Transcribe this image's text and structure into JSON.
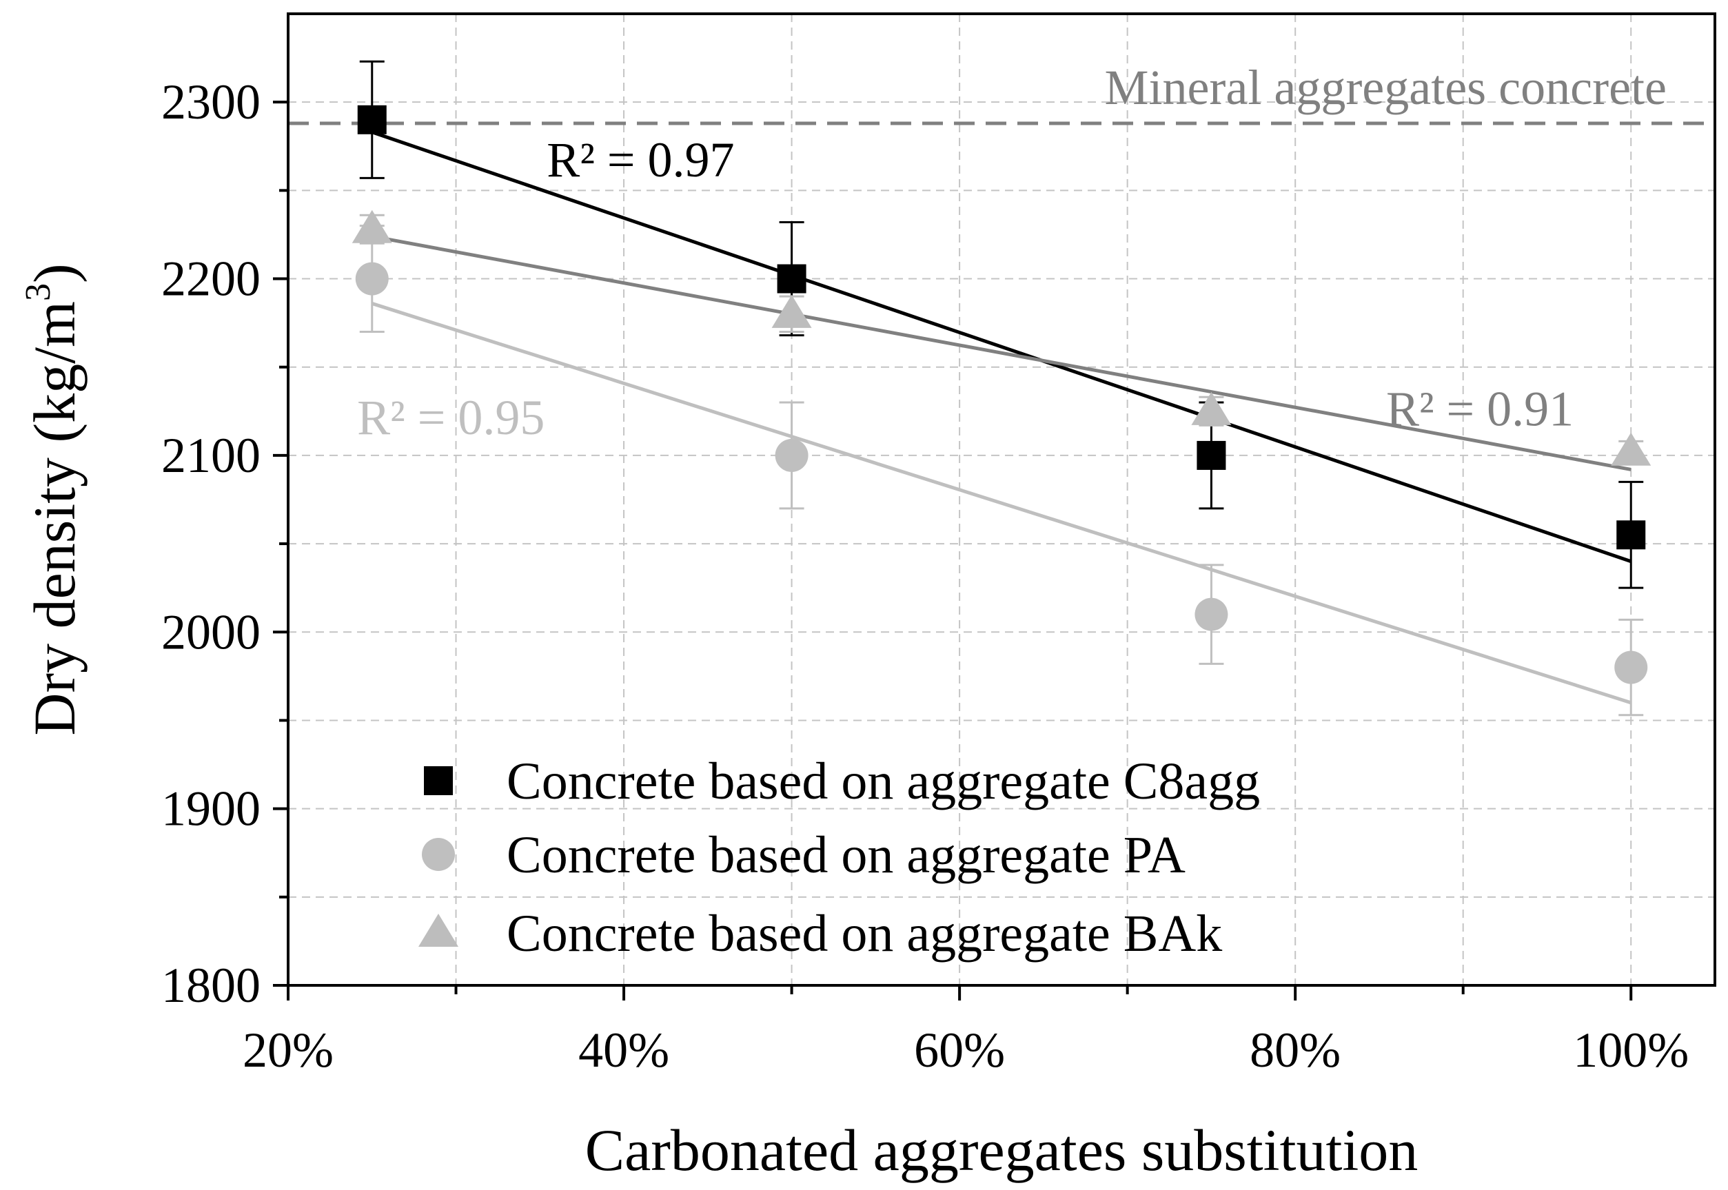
{
  "chart_data": {
    "type": "scatter",
    "xlabel": "Carbonated aggregates substitution",
    "ylabel_main": "Dry density (kg/m",
    "ylabel_sup": "3",
    "ylabel_close": ")",
    "xlim": [
      0.2,
      1.05
    ],
    "ylim": [
      1800,
      2350
    ],
    "x_ticks": [
      0.2,
      0.4,
      0.6,
      0.8,
      1.0
    ],
    "x_tick_labels": [
      "20%",
      "40%",
      "60%",
      "80%",
      "100%"
    ],
    "x_minor_ticks": [
      0.3,
      0.5,
      0.7,
      0.9
    ],
    "y_ticks": [
      1800,
      1900,
      2000,
      2100,
      2200,
      2300
    ],
    "y_tick_labels": [
      "1800",
      "1900",
      "2000",
      "2100",
      "2200",
      "2300"
    ],
    "y_minor_ticks": [
      1850,
      1950,
      2050,
      2150,
      2250
    ],
    "grid": true,
    "reference_line": {
      "label": "Mineral aggregates concrete",
      "y": 2288,
      "color": "#808080"
    },
    "series": [
      {
        "name": "Concrete based on aggregate C8agg",
        "marker": "square",
        "color": "#000000",
        "x": [
          0.25,
          0.5,
          0.75,
          1.0
        ],
        "y": [
          2290,
          2200,
          2100,
          2055
        ],
        "error": [
          33,
          32,
          30,
          30
        ],
        "fit": {
          "x": [
            0.25,
            1.0
          ],
          "y": [
            2283,
            2040
          ]
        },
        "r2_label": "R² = 0.97"
      },
      {
        "name": "Concrete based on aggregate PA",
        "marker": "circle",
        "color": "#bfbfbf",
        "x": [
          0.25,
          0.5,
          0.75,
          1.0
        ],
        "y": [
          2200,
          2100,
          2010,
          1980
        ],
        "error": [
          30,
          30,
          28,
          27
        ],
        "fit": {
          "x": [
            0.25,
            1.0
          ],
          "y": [
            2186,
            1960
          ]
        },
        "r2_label": "R² = 0.95"
      },
      {
        "name": "Concrete based on aggregate BAk",
        "marker": "triangle",
        "color": "#bdbdbd",
        "x": [
          0.25,
          0.5,
          0.75,
          1.0
        ],
        "y": [
          2228,
          2180,
          2125,
          2102
        ],
        "error": [
          8,
          10,
          8,
          6
        ],
        "fit": {
          "x": [
            0.25,
            1.0
          ],
          "y": [
            2224,
            2092
          ]
        },
        "fit_color": "#808080",
        "r2_label": "R² = 0.91",
        "r2_color": "#808080"
      }
    ],
    "legend_position": "lower-left"
  }
}
